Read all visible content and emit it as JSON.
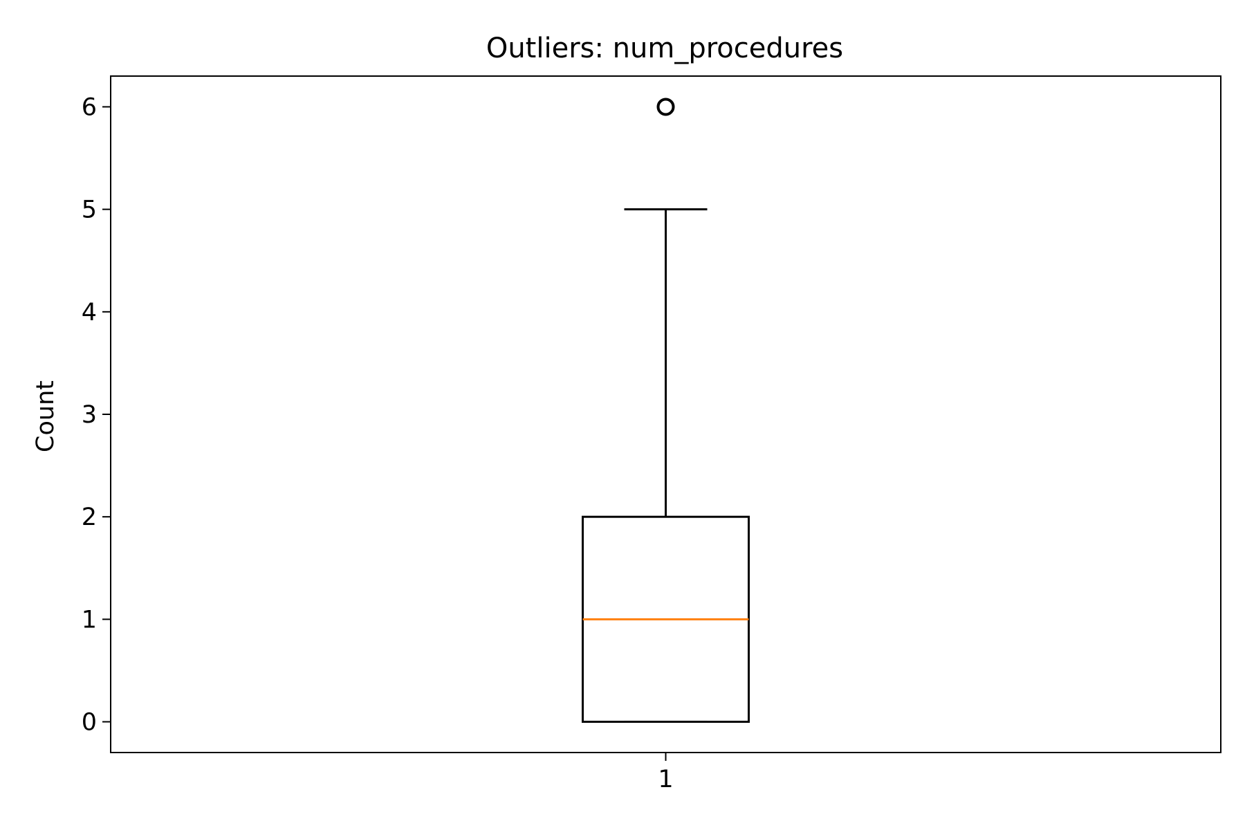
{
  "chart_data": {
    "type": "boxplot",
    "title": "Outliers: num_procedures",
    "xlabel": "",
    "ylabel": "Count",
    "categories": [
      "1"
    ],
    "ylim": [
      -0.3,
      6.3
    ],
    "yticks": [
      "0",
      "1",
      "2",
      "3",
      "4",
      "5",
      "6"
    ],
    "boxes": [
      {
        "category": "1",
        "whisker_low": 0,
        "q1": 0,
        "median": 1,
        "q3": 2,
        "whisker_high": 5,
        "outliers": [
          6
        ]
      }
    ],
    "grid": false,
    "colors": {
      "box": "#000000",
      "median": "#ff7f0e",
      "outlier": "#000000"
    }
  }
}
